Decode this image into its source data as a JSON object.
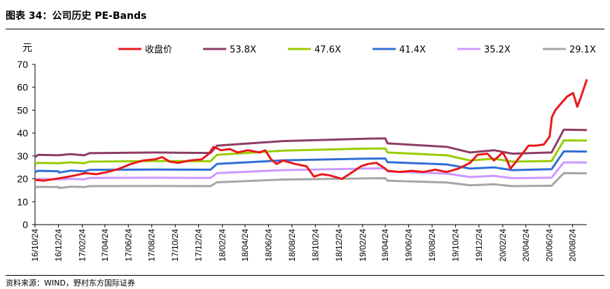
{
  "header": {
    "title": "图表 34：公司历史 PE-Bands"
  },
  "footer": {
    "source": "资料来源：WIND，野村东方国际证券"
  },
  "chart_data": {
    "type": "line",
    "ylabel": "元",
    "ylim": [
      0,
      70
    ],
    "yticks": [
      0,
      10,
      20,
      30,
      40,
      50,
      60,
      70
    ],
    "x_start": "2016/10/24",
    "x_end": "2020/09/30",
    "xtick_labels": [
      "16/10/24",
      "16/12/24",
      "17/02/24",
      "17/04/24",
      "17/06/24",
      "17/08/24",
      "17/10/24",
      "17/12/24",
      "18/02/24",
      "18/04/24",
      "18/06/24",
      "18/08/24",
      "18/10/24",
      "18/12/24",
      "19/02/24",
      "19/04/24",
      "19/06/24",
      "19/08/24",
      "19/10/24",
      "19/12/24",
      "20/02/24",
      "20/04/24",
      "20/06/24",
      "20/08/24"
    ],
    "grid": false,
    "legend_position": "top",
    "series": [
      {
        "name": "收盘价",
        "color": "#e8191b",
        "width": 3,
        "points": [
          [
            "2016/10/24",
            19.6
          ],
          [
            "2016/11/15",
            19.2
          ],
          [
            "2016/12/10",
            19.8
          ],
          [
            "2017/01/05",
            20.5
          ],
          [
            "2017/02/05",
            21.5
          ],
          [
            "2017/03/05",
            22.5
          ],
          [
            "2017/04/01",
            22.0
          ],
          [
            "2017/05/01",
            23.0
          ],
          [
            "2017/06/01",
            24.5
          ],
          [
            "2017/07/01",
            26.5
          ],
          [
            "2017/08/01",
            28.0
          ],
          [
            "2017/09/01",
            28.5
          ],
          [
            "2017/09/20",
            29.5
          ],
          [
            "2017/10/10",
            27.5
          ],
          [
            "2017/11/01",
            27.0
          ],
          [
            "2017/12/01",
            28.0
          ],
          [
            "2018/01/01",
            28.5
          ],
          [
            "2018/01/20",
            31.0
          ],
          [
            "2018/02/01",
            34.0
          ],
          [
            "2018/02/20",
            32.5
          ],
          [
            "2018/03/15",
            33.0
          ],
          [
            "2018/04/05",
            31.5
          ],
          [
            "2018/05/01",
            32.5
          ],
          [
            "2018/06/01",
            31.5
          ],
          [
            "2018/06/15",
            32.5
          ],
          [
            "2018/07/01",
            28.5
          ],
          [
            "2018/07/15",
            26.5
          ],
          [
            "2018/08/01",
            28.0
          ],
          [
            "2018/09/01",
            26.5
          ],
          [
            "2018/10/01",
            25.5
          ],
          [
            "2018/10/20",
            21.0
          ],
          [
            "2018/11/10",
            22.0
          ],
          [
            "2018/12/01",
            21.5
          ],
          [
            "2019/01/01",
            20.0
          ],
          [
            "2019/01/20",
            22.0
          ],
          [
            "2019/02/20",
            25.5
          ],
          [
            "2019/03/10",
            26.5
          ],
          [
            "2019/04/01",
            27.0
          ],
          [
            "2019/04/15",
            25.5
          ],
          [
            "2019/05/01",
            23.5
          ],
          [
            "2019/06/01",
            23.0
          ],
          [
            "2019/07/01",
            23.5
          ],
          [
            "2019/08/01",
            23.0
          ],
          [
            "2019/09/01",
            24.0
          ],
          [
            "2019/10/01",
            23.0
          ],
          [
            "2019/11/01",
            24.5
          ],
          [
            "2019/12/01",
            27.0
          ],
          [
            "2019/12/20",
            30.5
          ],
          [
            "2020/01/15",
            31.0
          ],
          [
            "2020/02/01",
            28.0
          ],
          [
            "2020/02/24",
            31.5
          ],
          [
            "2020/03/05",
            28.5
          ],
          [
            "2020/03/15",
            24.5
          ],
          [
            "2020/04/01",
            28.0
          ],
          [
            "2020/04/20",
            32.0
          ],
          [
            "2020/05/01",
            34.5
          ],
          [
            "2020/05/20",
            34.5
          ],
          [
            "2020/06/10",
            35.0
          ],
          [
            "2020/06/25",
            38.5
          ],
          [
            "2020/07/01",
            47.0
          ],
          [
            "2020/07/10",
            50.0
          ],
          [
            "2020/07/25",
            53.0
          ],
          [
            "2020/08/10",
            56.0
          ],
          [
            "2020/08/25",
            57.5
          ],
          [
            "2020/09/05",
            51.5
          ],
          [
            "2020/09/15",
            56.0
          ],
          [
            "2020/09/30",
            63.5
          ]
        ]
      },
      {
        "name": "53.8X",
        "color": "#8e3c64",
        "width": 3,
        "points": [
          [
            "2016/10/24",
            29.5
          ],
          [
            "2016/11/01",
            30.5
          ],
          [
            "2016/12/24",
            30.3
          ],
          [
            "2017/01/24",
            30.8
          ],
          [
            "2017/03/01",
            30.3
          ],
          [
            "2017/03/15",
            31.2
          ],
          [
            "2017/09/01",
            31.5
          ],
          [
            "2018/01/24",
            31.3
          ],
          [
            "2018/02/10",
            34.5
          ],
          [
            "2018/08/01",
            36.5
          ],
          [
            "2019/03/01",
            37.5
          ],
          [
            "2019/04/24",
            37.7
          ],
          [
            "2019/04/30",
            35.5
          ],
          [
            "2019/10/01",
            34.0
          ],
          [
            "2019/12/01",
            31.5
          ],
          [
            "2020/02/01",
            32.5
          ],
          [
            "2020/03/20",
            31.0
          ],
          [
            "2020/06/30",
            31.5
          ],
          [
            "2020/08/01",
            41.5
          ],
          [
            "2020/09/30",
            41.3
          ]
        ]
      },
      {
        "name": "47.6X",
        "color": "#99cc00",
        "width": 3,
        "points": [
          [
            "2016/10/24",
            26.5
          ],
          [
            "2016/11/01",
            27.0
          ],
          [
            "2016/12/24",
            26.8
          ],
          [
            "2017/01/24",
            27.2
          ],
          [
            "2017/03/01",
            26.8
          ],
          [
            "2017/03/15",
            27.5
          ],
          [
            "2017/09/01",
            27.8
          ],
          [
            "2018/01/24",
            27.7
          ],
          [
            "2018/02/10",
            30.5
          ],
          [
            "2018/08/01",
            32.3
          ],
          [
            "2019/03/01",
            33.2
          ],
          [
            "2019/04/24",
            33.3
          ],
          [
            "2019/04/30",
            31.5
          ],
          [
            "2019/10/01",
            30.3
          ],
          [
            "2019/12/01",
            28.0
          ],
          [
            "2020/02/01",
            28.8
          ],
          [
            "2020/03/20",
            27.5
          ],
          [
            "2020/06/30",
            27.8
          ],
          [
            "2020/08/01",
            36.8
          ],
          [
            "2020/09/30",
            36.7
          ]
        ]
      },
      {
        "name": "41.4X",
        "color": "#2f6fd6",
        "width": 3,
        "points": [
          [
            "2016/10/24",
            23.0
          ],
          [
            "2016/11/01",
            23.5
          ],
          [
            "2016/12/24",
            23.3
          ],
          [
            "2016/12/26",
            22.7
          ],
          [
            "2017/01/24",
            23.6
          ],
          [
            "2017/03/01",
            23.3
          ],
          [
            "2017/03/15",
            23.9
          ],
          [
            "2017/09/01",
            24.1
          ],
          [
            "2018/01/24",
            24.0
          ],
          [
            "2018/02/10",
            26.5
          ],
          [
            "2018/08/01",
            28.1
          ],
          [
            "2019/03/01",
            28.8
          ],
          [
            "2019/04/24",
            28.9
          ],
          [
            "2019/04/30",
            27.3
          ],
          [
            "2019/10/01",
            26.3
          ],
          [
            "2019/12/01",
            24.5
          ],
          [
            "2020/02/01",
            25.0
          ],
          [
            "2020/03/20",
            23.8
          ],
          [
            "2020/06/30",
            24.2
          ],
          [
            "2020/08/01",
            32.0
          ],
          [
            "2020/09/30",
            31.9
          ]
        ]
      },
      {
        "name": "35.2X",
        "color": "#cc99ff",
        "width": 3,
        "points": [
          [
            "2016/10/24",
            19.5
          ],
          [
            "2016/11/01",
            20.0
          ],
          [
            "2016/12/24",
            19.8
          ],
          [
            "2017/01/24",
            20.0
          ],
          [
            "2017/03/01",
            19.8
          ],
          [
            "2017/03/15",
            20.4
          ],
          [
            "2017/09/01",
            20.5
          ],
          [
            "2018/01/24",
            20.4
          ],
          [
            "2018/02/10",
            22.5
          ],
          [
            "2018/08/01",
            23.8
          ],
          [
            "2019/03/01",
            24.5
          ],
          [
            "2019/04/24",
            24.6
          ],
          [
            "2019/04/30",
            23.2
          ],
          [
            "2019/10/01",
            22.3
          ],
          [
            "2019/12/01",
            20.8
          ],
          [
            "2020/02/01",
            21.3
          ],
          [
            "2020/03/20",
            20.3
          ],
          [
            "2020/06/30",
            20.5
          ],
          [
            "2020/08/01",
            27.2
          ],
          [
            "2020/09/30",
            27.1
          ]
        ]
      },
      {
        "name": "29.1X",
        "color": "#a6a6a6",
        "width": 3,
        "points": [
          [
            "2016/10/24",
            16.2
          ],
          [
            "2016/11/01",
            16.5
          ],
          [
            "2016/12/24",
            16.4
          ],
          [
            "2016/12/26",
            16.0
          ],
          [
            "2017/01/24",
            16.6
          ],
          [
            "2017/03/01",
            16.4
          ],
          [
            "2017/03/15",
            16.8
          ],
          [
            "2017/09/01",
            16.9
          ],
          [
            "2018/01/24",
            16.8
          ],
          [
            "2018/02/10",
            18.5
          ],
          [
            "2018/08/01",
            19.7
          ],
          [
            "2019/03/01",
            20.2
          ],
          [
            "2019/04/24",
            20.3
          ],
          [
            "2019/04/30",
            19.2
          ],
          [
            "2019/10/01",
            18.4
          ],
          [
            "2019/12/01",
            17.2
          ],
          [
            "2020/02/01",
            17.6
          ],
          [
            "2020/03/20",
            16.8
          ],
          [
            "2020/06/30",
            17.0
          ],
          [
            "2020/08/01",
            22.5
          ],
          [
            "2020/09/30",
            22.4
          ]
        ]
      }
    ]
  }
}
